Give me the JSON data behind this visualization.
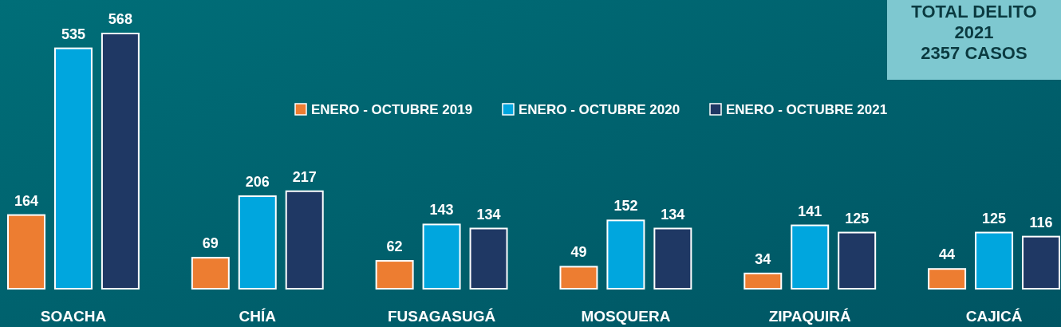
{
  "chart_data": {
    "type": "bar",
    "categories": [
      "SOACHA",
      "CHÍA",
      "FUSAGASUGÁ",
      "MOSQUERA",
      "ZIPAQUIRÁ",
      "CAJICÁ"
    ],
    "series": [
      {
        "name": "ENERO - OCTUBRE 2019",
        "color": "#ed7d31",
        "values": [
          164,
          69,
          62,
          49,
          34,
          44
        ]
      },
      {
        "name": "ENERO - OCTUBRE 2020",
        "color": "#00a6de",
        "values": [
          535,
          206,
          143,
          152,
          141,
          125
        ]
      },
      {
        "name": "ENERO - OCTUBRE 2021",
        "color": "#1f3864",
        "values": [
          568,
          217,
          134,
          134,
          125,
          116
        ]
      }
    ],
    "data_labels": true,
    "legend": "top",
    "grid": false,
    "annotations": [
      "TOTAL DELITO\n2021\n2357 CASOS"
    ]
  }
}
